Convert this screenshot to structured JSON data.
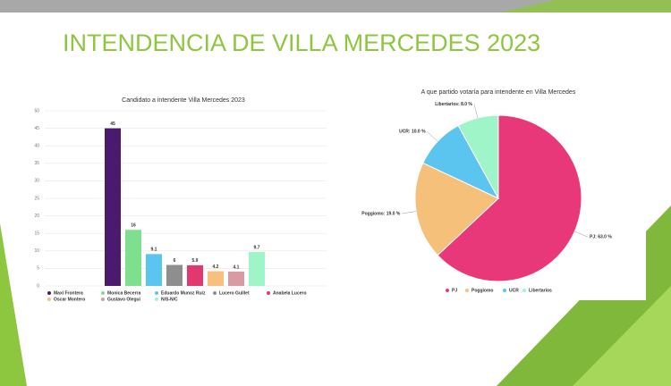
{
  "title": "INTENDENCIA DE VILLA MERCEDES 2023",
  "chart_data": [
    {
      "type": "bar",
      "title": "Candidato a intendente Villa Mercedes 2023",
      "ylim": [
        0,
        50
      ],
      "yticks": [
        0,
        5,
        10,
        15,
        20,
        25,
        30,
        35,
        40,
        45,
        50
      ],
      "grid": true,
      "series": [
        {
          "name": "Maxi Frontera",
          "color": "#4b1a6e",
          "values": [
            45
          ]
        },
        {
          "name": "Monica Becerra",
          "color": "#7ee08f",
          "values": [
            16
          ]
        },
        {
          "name": "Eduardo Munoz Ruiz",
          "color": "#5bc5ef",
          "values": [
            9.1
          ]
        },
        {
          "name": "Lucero Guillet",
          "color": "#8e8e8e",
          "values": [
            6
          ]
        },
        {
          "name": "Anabela Lucero",
          "color": "#e0386f",
          "values": [
            5.9
          ]
        },
        {
          "name": "Oscar Montero",
          "color": "#f7c07d",
          "values": [
            4.2
          ]
        },
        {
          "name": "Gustavo Olegui",
          "color": "#d99aa3",
          "values": [
            4.1
          ]
        },
        {
          "name": "N/S-N/C",
          "color": "#a0f5c8",
          "values": [
            9.7
          ]
        }
      ]
    },
    {
      "type": "pie",
      "title": "A que partido votaría para intendente en Villa Mercedes",
      "categories": [
        "PJ",
        "Poggiomo",
        "UCR",
        "Libertarios"
      ],
      "values": [
        63,
        19,
        10,
        8
      ],
      "value_labels": [
        "PJ: 63.0 %",
        "Poggiomo: 19.0 %",
        "UCR: 10.0 %",
        "Libertarios: 8.0 %"
      ],
      "colors": [
        "#e8387a",
        "#f5c07a",
        "#5bc5ef",
        "#a0f5c8"
      ]
    }
  ]
}
